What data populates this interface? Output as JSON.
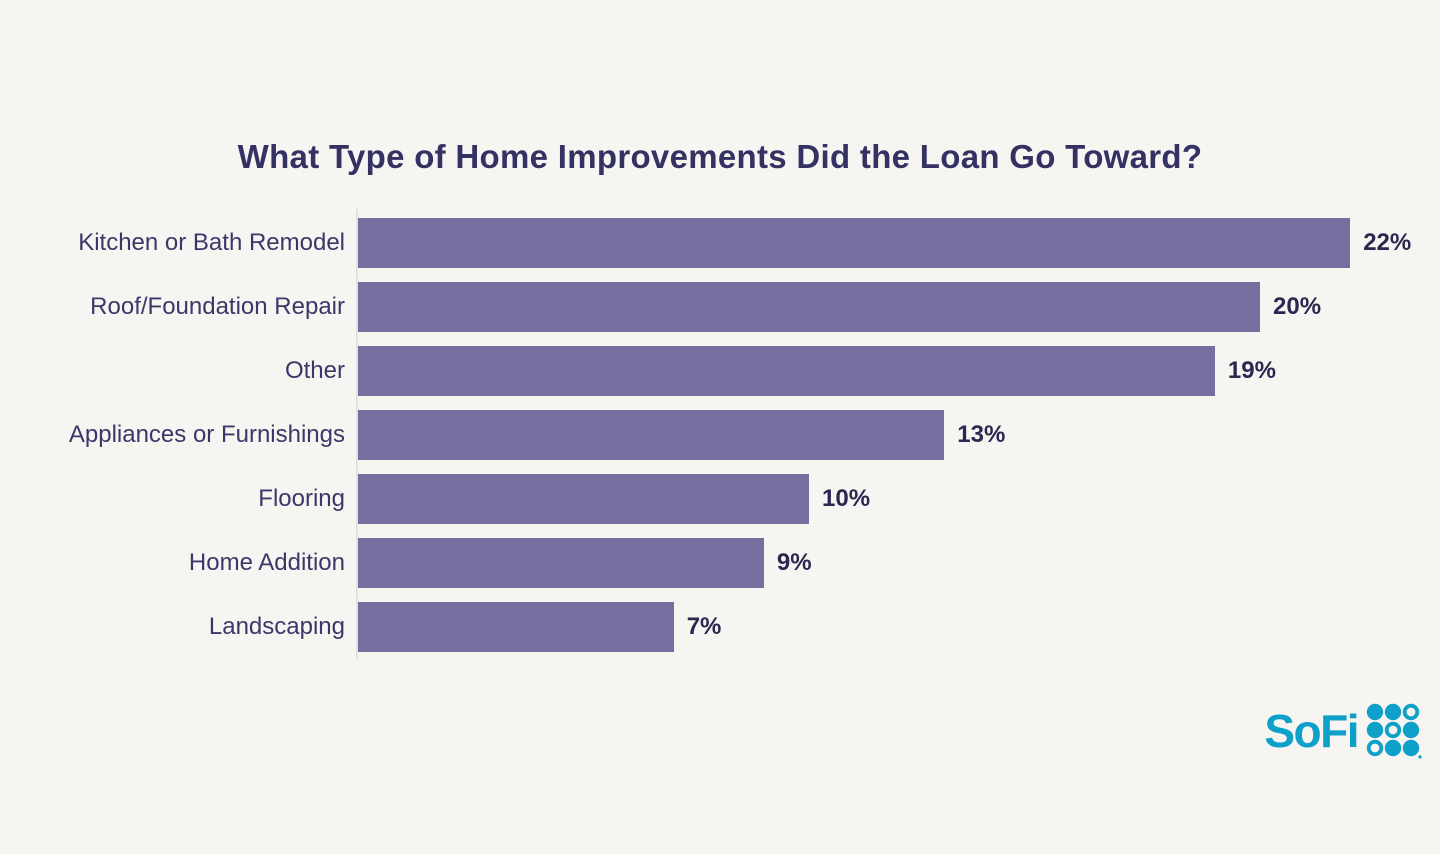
{
  "page": {
    "background_color": "#F7F5F1"
  },
  "chart_data": {
    "type": "bar",
    "orientation": "horizontal",
    "title": "What Type of Home Improvements Did the Loan Go Toward?",
    "categories": [
      "Kitchen or Bath Remodel",
      "Roof/Foundation Repair",
      "Other",
      "Appliances or Furnishings",
      "Flooring",
      "Home Addition",
      "Landscaping"
    ],
    "values": [
      22,
      20,
      19,
      13,
      10,
      9,
      7
    ],
    "value_labels": [
      "22%",
      "20%",
      "19%",
      "13%",
      "10%",
      "9%",
      "7%"
    ],
    "xlim": [
      0,
      22
    ],
    "grid": false,
    "legend": false,
    "bar_color": "#756FA0",
    "title_color": "#343163",
    "category_label_color": "#3B3869",
    "value_label_color": "#2A2750",
    "axis_line_color": "#E4E1DA"
  },
  "footer": {
    "logo_text": "SoFi",
    "logo_color": "#0DA0C8"
  }
}
